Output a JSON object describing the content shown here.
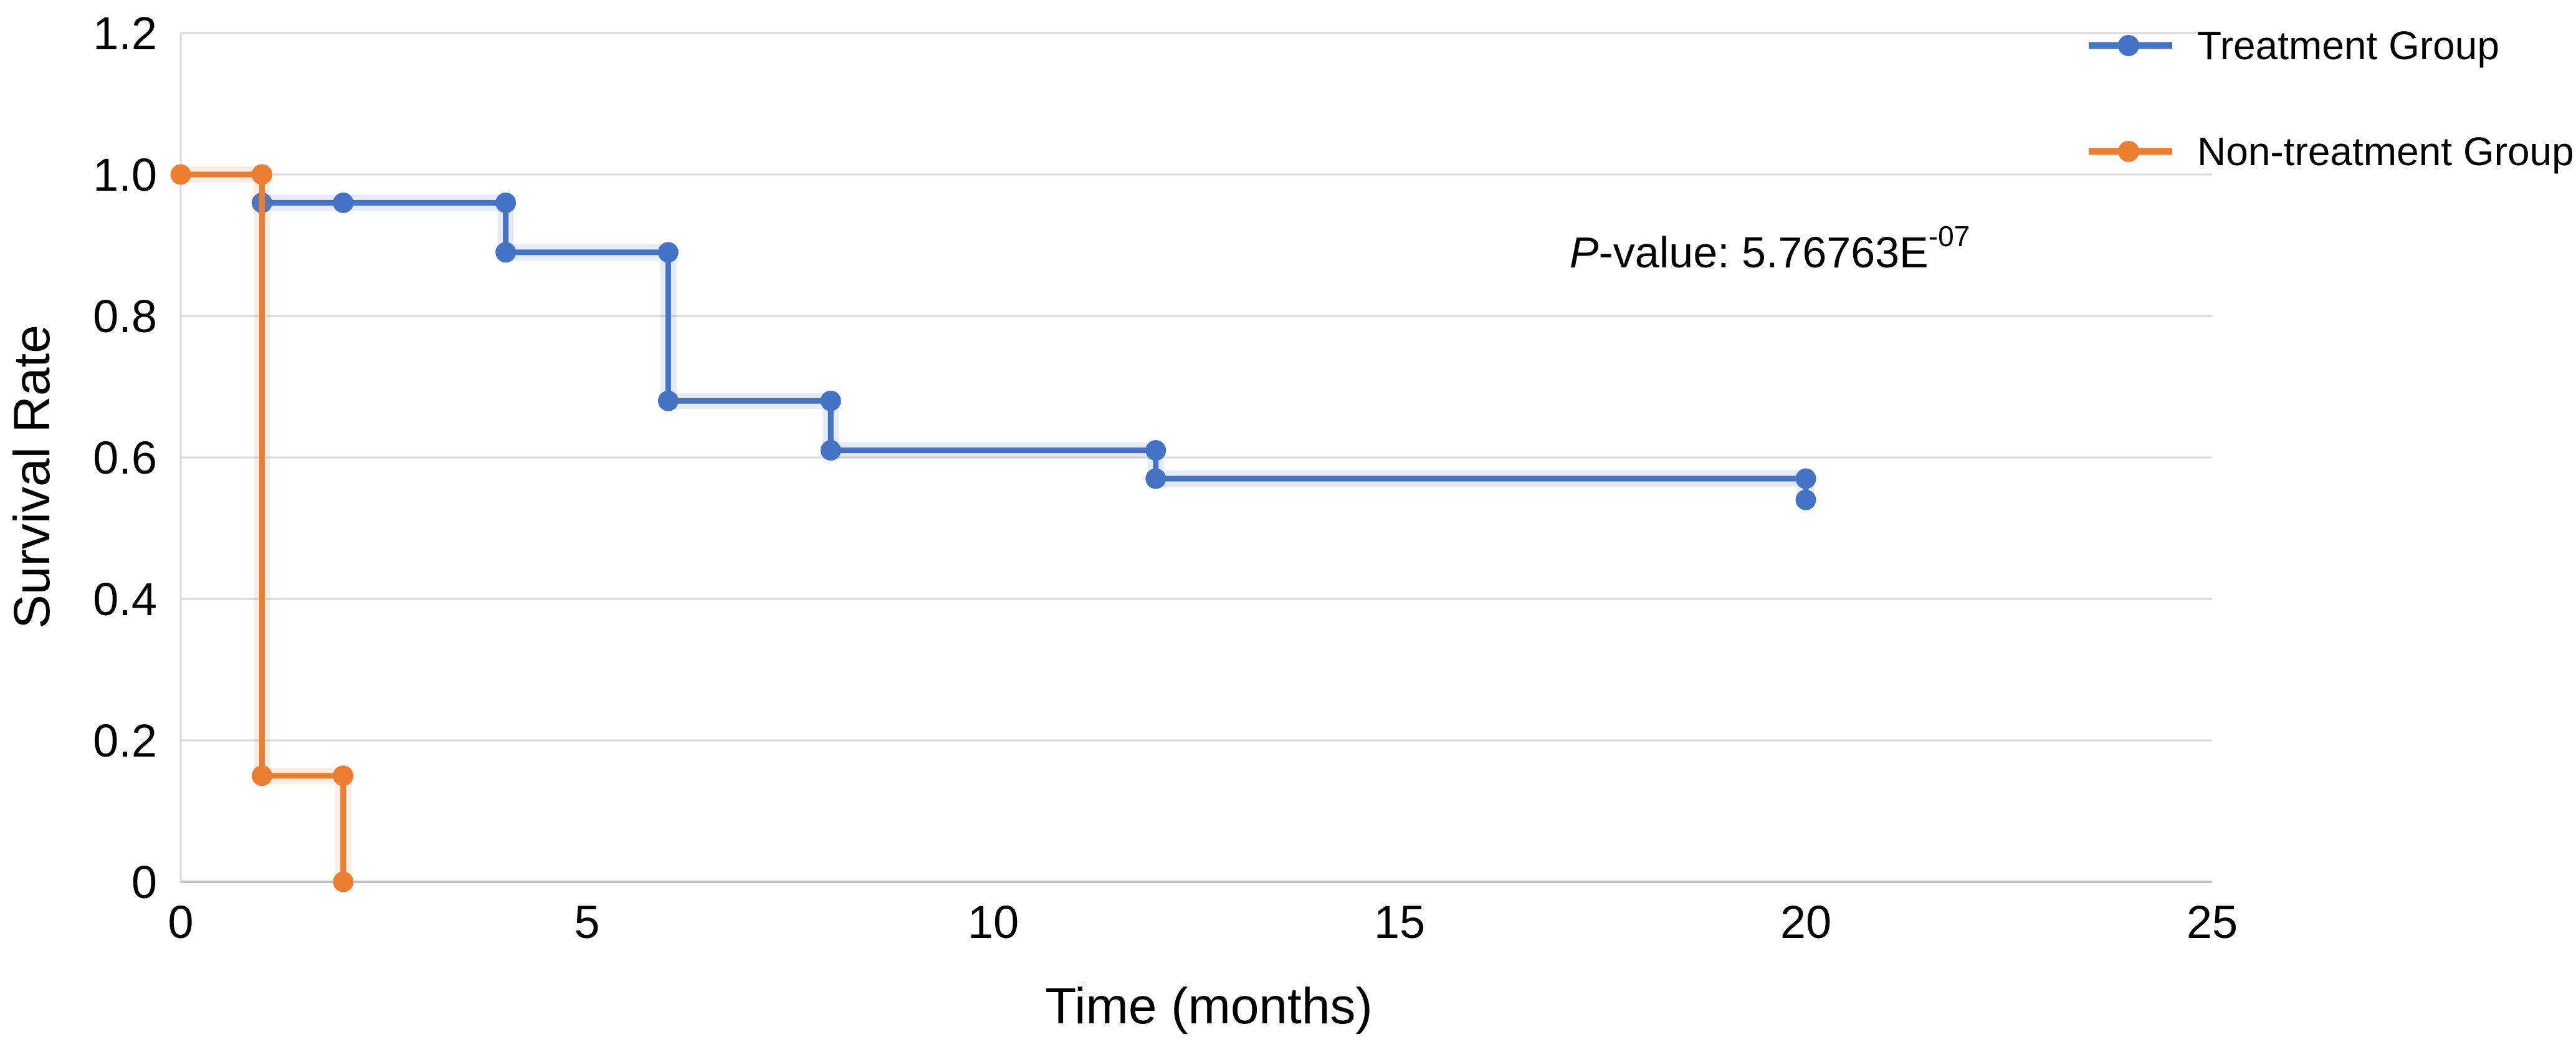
{
  "chart_data": {
    "type": "line",
    "subtype": "step-survival",
    "title": "",
    "xlabel": "Time (months)",
    "ylabel": "Survival Rate",
    "xlim": [
      0,
      25
    ],
    "ylim": [
      0,
      1.2
    ],
    "x_ticks": [
      "0",
      "5",
      "10",
      "15",
      "20",
      "25"
    ],
    "y_ticks": [
      "0",
      "0.2",
      "0.4",
      "0.6",
      "0.8",
      "1.0",
      "1.2"
    ],
    "grid": "horizontal",
    "legend_position": "top-right",
    "annotation_text": "P-value: 5.76763E-07",
    "series": [
      {
        "name": "Treatment Group",
        "color": "#4472C4",
        "points": [
          [
            1,
            0.96
          ],
          [
            2,
            0.96
          ],
          [
            4,
            0.96
          ],
          [
            4,
            0.89
          ],
          [
            6,
            0.89
          ],
          [
            6,
            0.68
          ],
          [
            8,
            0.68
          ],
          [
            8,
            0.61
          ],
          [
            12,
            0.61
          ],
          [
            12,
            0.57
          ],
          [
            20,
            0.57
          ],
          [
            20,
            0.54
          ]
        ]
      },
      {
        "name": "Non-treatment Group",
        "color": "#ED7D31",
        "points": [
          [
            0,
            1.0
          ],
          [
            1,
            1.0
          ],
          [
            1,
            0.15
          ],
          [
            2,
            0.15
          ],
          [
            2,
            0.0
          ]
        ]
      }
    ]
  },
  "annotation": {
    "p_italic": "P",
    "p_rest": "-value: 5.76763E",
    "p_exp": "-07"
  },
  "legend": {
    "items": [
      {
        "label": "Treatment Group",
        "color": "#4472C4"
      },
      {
        "label": "Non-treatment Group",
        "color": "#ED7D31"
      }
    ]
  },
  "style": {
    "gridline_color": "#D9D9D9",
    "axis_line_color": "#BFBFBF",
    "text_color": "#000000"
  }
}
